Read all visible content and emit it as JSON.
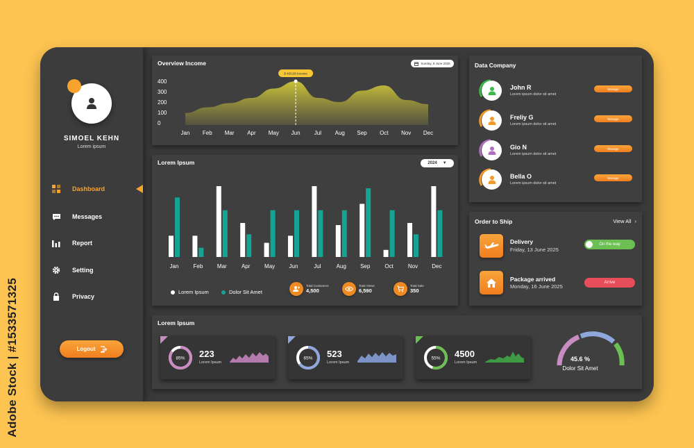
{
  "watermark_id": "Adobe Stock | #1533571325",
  "profile": {
    "name": "SIMOEL KEHN",
    "subtitle": "Lorem ipsum"
  },
  "nav": [
    {
      "label": "Dashboard",
      "icon": "dashboard-icon",
      "active": true
    },
    {
      "label": "Messages",
      "icon": "messages-icon"
    },
    {
      "label": "Report",
      "icon": "report-icon"
    },
    {
      "label": "Setting",
      "icon": "gear-icon"
    },
    {
      "label": "Privacy",
      "icon": "lock-icon"
    }
  ],
  "logout_label": "Logout",
  "overview": {
    "title": "Overview Income",
    "date": "Sunday, 8 June 2025",
    "tooltip": "$ 400,00 Income"
  },
  "bars_card": {
    "title": "Lorem Ipsum",
    "year": "2024",
    "legend": [
      "Lorem Ipsum",
      "Dolor Sit Amet"
    ],
    "stats": [
      {
        "label": "Total Customers",
        "value": "4,500",
        "icon": "customers-icon"
      },
      {
        "label": "Total Views",
        "value": "6,590",
        "icon": "eye-icon"
      },
      {
        "label": "Total Sale",
        "value": "350",
        "icon": "cart-icon"
      }
    ]
  },
  "company": {
    "title": "Data Company",
    "rows": [
      {
        "name": "John R",
        "desc": "Lorem ipsum dolor sit amet",
        "button": "Manage",
        "color": "#3db94a"
      },
      {
        "name": "Freliy G",
        "desc": "Lorem ipsum dolor sit amet",
        "button": "Manage",
        "color": "#f39a2a"
      },
      {
        "name": "Gio N",
        "desc": "Lorem ipsum dolor sit amet",
        "button": "Manage",
        "color": "#b070c0"
      },
      {
        "name": "Bella O",
        "desc": "Lorem ipsum dolor sit amet",
        "button": "Manage",
        "color": "#f39a2a"
      }
    ]
  },
  "orders": {
    "title": "Order to Ship",
    "view_all": "View All",
    "items": [
      {
        "title": "Delivery",
        "date": "Friday, 13 June 2025",
        "status": "On the way",
        "status_color": "#6cbf53",
        "icon": "airplane-icon"
      },
      {
        "title": "Package arrived",
        "date": "Monday, 16 June 2025",
        "status": "Arrive",
        "status_color": "#e84d5c",
        "icon": "home-icon"
      }
    ]
  },
  "bottom": {
    "title": "Lorem Ipsum",
    "minis": [
      {
        "percent": "85%",
        "value": "223",
        "label": "Lorem Ipsum",
        "pct": 0.85,
        "color": "#c88bc2"
      },
      {
        "percent": "65%",
        "value": "523",
        "label": "Lorem Ipsum",
        "pct": 0.65,
        "color": "#8fa7dc"
      },
      {
        "percent": "55%",
        "value": "4500",
        "label": "Lorem Ipsum",
        "pct": 0.55,
        "color": "#6cbf53"
      }
    ],
    "gauge": {
      "value": "45.6 %",
      "label": "Dolor Sit Amet"
    }
  },
  "chart_data": [
    {
      "type": "area",
      "title": "Overview Income",
      "categories": [
        "Jan",
        "Feb",
        "Mar",
        "Apr",
        "May",
        "Jun",
        "Jul",
        "Aug",
        "Sep",
        "Oct",
        "Nov",
        "Dec"
      ],
      "yticks": [
        0,
        100,
        200,
        300,
        400
      ],
      "ylim": [
        0,
        450
      ],
      "values": [
        95,
        150,
        190,
        240,
        330,
        400,
        240,
        200,
        310,
        360,
        220,
        180
      ],
      "highlight": {
        "category": "Jun",
        "value": 400
      },
      "color": "#c8bf3a"
    },
    {
      "type": "bar",
      "title": "Lorem Ipsum",
      "categories": [
        "Jan",
        "Feb",
        "Mar",
        "Apr",
        "May",
        "Jun",
        "Jul",
        "Aug",
        "Sep",
        "Oct",
        "Nov",
        "Dec"
      ],
      "ylim": [
        0,
        100
      ],
      "series": [
        {
          "name": "Lorem Ipsum",
          "color": "#ffffff",
          "values": [
            30,
            30,
            100,
            48,
            20,
            30,
            100,
            45,
            75,
            10,
            48,
            100
          ]
        },
        {
          "name": "Dolor Sit Amet",
          "color": "#16a394",
          "values": [
            84,
            13,
            66,
            32,
            66,
            66,
            66,
            66,
            97,
            66,
            32,
            66
          ]
        }
      ]
    }
  ]
}
